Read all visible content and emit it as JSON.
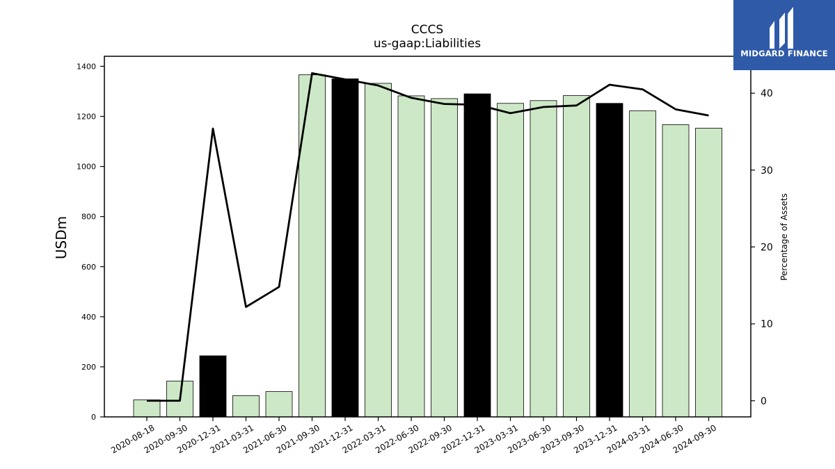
{
  "chart_data": {
    "type": "bar",
    "title": "CCCS",
    "subtitle": "us-gaap:Liabilities",
    "ylabel": "USDm",
    "y2label": "Percentage of Assets",
    "ylim": [
      0,
      1440
    ],
    "y2lim": [
      -2.1,
      44.8
    ],
    "yticks": [
      0,
      200,
      400,
      600,
      800,
      1000,
      1200,
      1400
    ],
    "y2ticks": [
      0,
      10,
      20,
      30,
      40
    ],
    "grid": false,
    "categories": [
      "2020-08-18",
      "2020-09-30",
      "2020-12-31",
      "2021-03-31",
      "2021-06-30",
      "2021-09-30",
      "2021-12-31",
      "2022-03-31",
      "2022-06-30",
      "2022-09-30",
      "2022-12-31",
      "2023-03-31",
      "2023-06-30",
      "2023-09-30",
      "2023-12-31",
      "2024-03-31",
      "2024-06-30",
      "2024-09-30"
    ],
    "series": [
      {
        "kind": "bar",
        "values": [
          68,
          143,
          244,
          85,
          101,
          1366,
          1350,
          1332,
          1282,
          1271,
          1290,
          1252,
          1263,
          1283,
          1252,
          1222,
          1167,
          1153
        ],
        "annual": [
          false,
          false,
          true,
          false,
          false,
          false,
          true,
          false,
          false,
          false,
          true,
          false,
          false,
          false,
          true,
          false,
          false,
          false
        ],
        "color_quarter": "#cde8c6",
        "color_annual": "#000000"
      },
      {
        "kind": "line",
        "axis": "y2",
        "values": [
          0.0,
          0.0,
          35.4,
          12.2,
          14.8,
          42.6,
          41.8,
          41.0,
          39.4,
          38.6,
          38.5,
          37.4,
          38.2,
          38.4,
          41.1,
          40.5,
          37.9,
          37.1
        ],
        "color": "#000000"
      }
    ]
  },
  "logo": {
    "text": "MIDGARD FINANCE",
    "color": "#2f5aa8"
  }
}
